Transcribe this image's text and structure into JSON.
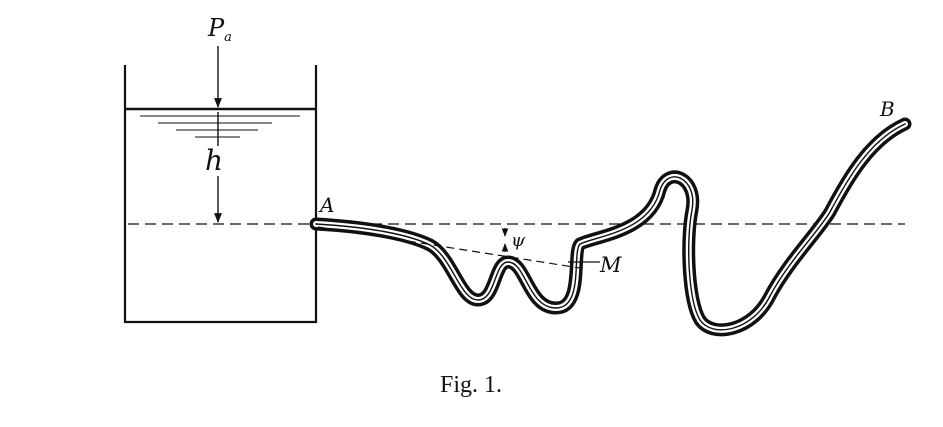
{
  "figure": {
    "caption": "Fig. 1.",
    "labels": {
      "pressure": "P",
      "pressure_sub": "a",
      "height": "h",
      "point_a": "A",
      "point_b": "B",
      "point_m": "M",
      "angle": "ψ"
    }
  }
}
